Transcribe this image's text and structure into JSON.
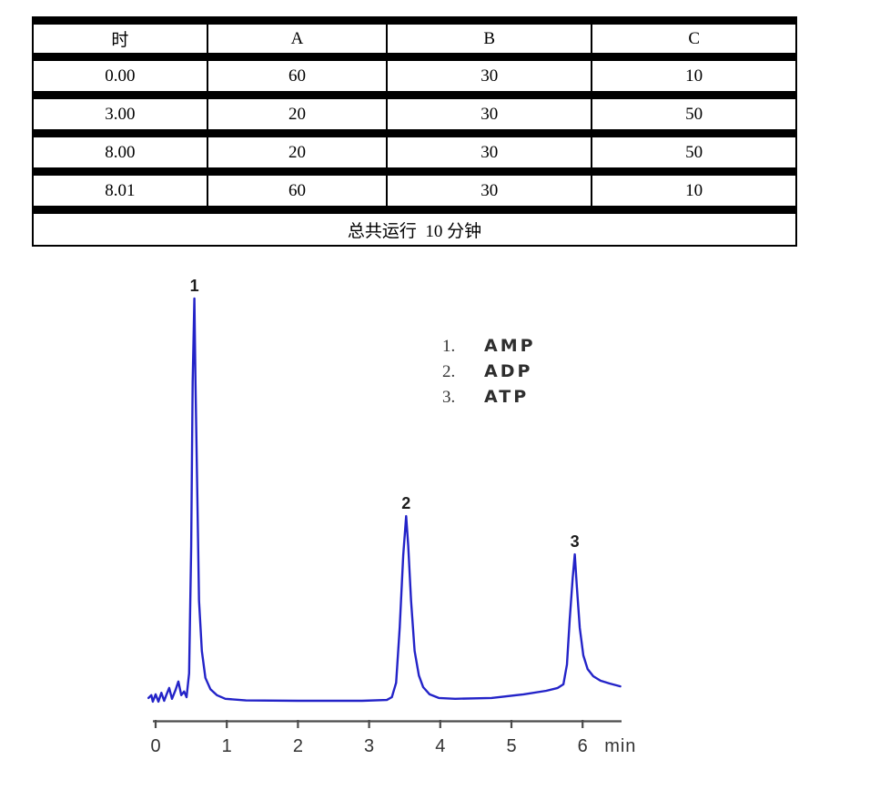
{
  "table": {
    "headers": [
      "时",
      "A",
      "B",
      "C"
    ],
    "rows": [
      [
        "0.00",
        "60",
        "30",
        "10"
      ],
      [
        "3.00",
        "20",
        "30",
        "50"
      ],
      [
        "8.00",
        "20",
        "30",
        "50"
      ],
      [
        "8.01",
        "60",
        "30",
        "10"
      ]
    ],
    "footer": "总共运行  10 分钟"
  },
  "chart_data": {
    "type": "line",
    "xlabel": "min",
    "x_ticks": [
      0,
      1,
      2,
      3,
      4,
      5,
      6
    ],
    "xlim": [
      -0.15,
      6.6
    ],
    "ylim": [
      0,
      1.1
    ],
    "grid": false,
    "legend_position": "upper right",
    "line_color": "#2323c8",
    "axis_color": "#4a4a4a",
    "legend": [
      {
        "number": "1.",
        "label": "AMP"
      },
      {
        "number": "2.",
        "label": "ADP"
      },
      {
        "number": "3.",
        "label": "ATP"
      }
    ],
    "peaks": [
      {
        "marker": "1",
        "compound": "AMP",
        "retention_min": 0.545,
        "rel_height": 1.0
      },
      {
        "marker": "2",
        "compound": "ADP",
        "retention_min": 3.52,
        "rel_height": 0.459
      },
      {
        "marker": "3",
        "compound": "ATP",
        "retention_min": 5.89,
        "rel_height": 0.364
      }
    ],
    "trace": [
      [
        -0.1,
        0.007
      ],
      [
        -0.06,
        0.014
      ],
      [
        -0.04,
        -0.002
      ],
      [
        0.0,
        0.016
      ],
      [
        0.04,
        -0.002
      ],
      [
        0.08,
        0.02
      ],
      [
        0.12,
        0.0
      ],
      [
        0.15,
        0.014
      ],
      [
        0.19,
        0.032
      ],
      [
        0.23,
        0.005
      ],
      [
        0.28,
        0.027
      ],
      [
        0.32,
        0.048
      ],
      [
        0.36,
        0.014
      ],
      [
        0.4,
        0.023
      ],
      [
        0.435,
        0.009
      ],
      [
        0.47,
        0.068
      ],
      [
        0.5,
        0.385
      ],
      [
        0.52,
        0.792
      ],
      [
        0.545,
        1.0
      ],
      [
        0.56,
        0.792
      ],
      [
        0.59,
        0.475
      ],
      [
        0.61,
        0.249
      ],
      [
        0.65,
        0.124
      ],
      [
        0.7,
        0.057
      ],
      [
        0.77,
        0.029
      ],
      [
        0.86,
        0.014
      ],
      [
        0.98,
        0.005
      ],
      [
        1.27,
        0.001
      ],
      [
        2.0,
        0.0
      ],
      [
        2.9,
        0.0
      ],
      [
        3.25,
        0.002
      ],
      [
        3.32,
        0.009
      ],
      [
        3.38,
        0.045
      ],
      [
        3.43,
        0.181
      ],
      [
        3.48,
        0.362
      ],
      [
        3.52,
        0.459
      ],
      [
        3.55,
        0.385
      ],
      [
        3.59,
        0.249
      ],
      [
        3.64,
        0.124
      ],
      [
        3.7,
        0.063
      ],
      [
        3.76,
        0.034
      ],
      [
        3.85,
        0.016
      ],
      [
        3.98,
        0.007
      ],
      [
        4.21,
        0.005
      ],
      [
        4.72,
        0.007
      ],
      [
        5.17,
        0.016
      ],
      [
        5.49,
        0.025
      ],
      [
        5.65,
        0.032
      ],
      [
        5.73,
        0.041
      ],
      [
        5.78,
        0.09
      ],
      [
        5.82,
        0.204
      ],
      [
        5.86,
        0.305
      ],
      [
        5.89,
        0.364
      ],
      [
        5.92,
        0.283
      ],
      [
        5.96,
        0.181
      ],
      [
        6.01,
        0.113
      ],
      [
        6.07,
        0.079
      ],
      [
        6.15,
        0.061
      ],
      [
        6.25,
        0.05
      ],
      [
        6.38,
        0.043
      ],
      [
        6.53,
        0.036
      ]
    ]
  }
}
